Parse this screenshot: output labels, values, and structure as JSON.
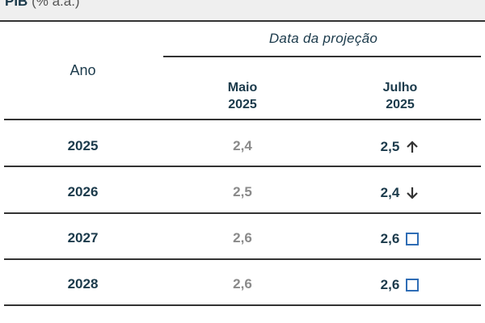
{
  "title": {
    "main": "PIB",
    "unit": "(% a.a.)"
  },
  "header": {
    "ano": "Ano",
    "date_group": "Data da projeção",
    "col_maio": {
      "line1": "Maio",
      "line2": "2025"
    },
    "col_julho": {
      "line1": "Julho",
      "line2": "2025"
    }
  },
  "colors": {
    "text_dark": "#1b3a4b",
    "text_muted": "#8a8a8a",
    "indicator_square": "#2f6db5",
    "rule": "#333333"
  },
  "rows": [
    {
      "ano": "2025",
      "maio": "2,4",
      "julho": "2,5",
      "indicator": "arrow-up-icon"
    },
    {
      "ano": "2026",
      "maio": "2,5",
      "julho": "2,4",
      "indicator": "arrow-down-icon"
    },
    {
      "ano": "2027",
      "maio": "2,6",
      "julho": "2,6",
      "indicator": "square-icon"
    },
    {
      "ano": "2028",
      "maio": "2,6",
      "julho": "2,6",
      "indicator": "square-icon"
    }
  ]
}
